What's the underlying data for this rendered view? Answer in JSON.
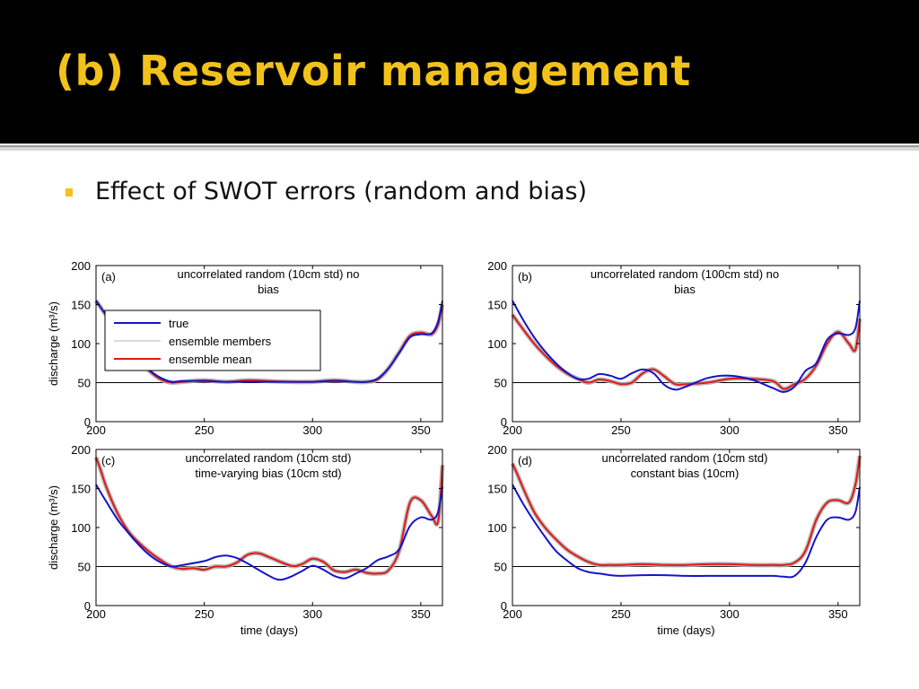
{
  "slide": {
    "title": "(b) Reservoir management",
    "bullet": "Effect of SWOT errors (random and bias)"
  },
  "colors": {
    "title": "#f2c21a",
    "true": "#1414c8",
    "mean": "#e01818",
    "members": "#b4b4b4"
  },
  "chart_data": [
    {
      "type": "line",
      "panel": "(a)",
      "title": [
        "uncorrelated random (10cm std) no",
        "bias"
      ],
      "xlabel": "",
      "ylabel": "discharge (m³/s)",
      "xlim": [
        200,
        360
      ],
      "ylim": [
        0,
        200
      ],
      "xticks": [
        200,
        250,
        300,
        350
      ],
      "yticks": [
        0,
        50,
        100,
        150,
        200
      ],
      "reference_line": 50,
      "legend": {
        "placement": "top-left",
        "entries": [
          "true",
          "ensemble members",
          "ensemble mean"
        ]
      },
      "series": [
        {
          "name": "true",
          "x": [
            200,
            205,
            210,
            215,
            220,
            225,
            230,
            235,
            240,
            250,
            260,
            270,
            280,
            290,
            300,
            310,
            320,
            325,
            330,
            335,
            340,
            345,
            350,
            355,
            358,
            360
          ],
          "y": [
            155,
            135,
            115,
            95,
            78,
            65,
            56,
            51,
            52,
            52,
            51,
            51,
            51,
            51,
            51,
            52,
            51,
            51,
            55,
            68,
            88,
            108,
            112,
            113,
            128,
            155
          ]
        },
        {
          "name": "ensemble mean",
          "x": [
            200,
            205,
            210,
            215,
            220,
            225,
            230,
            235,
            240,
            250,
            260,
            270,
            280,
            290,
            300,
            310,
            320,
            325,
            330,
            335,
            340,
            345,
            350,
            355,
            358,
            360
          ],
          "y": [
            155,
            135,
            115,
            95,
            78,
            64,
            54,
            50,
            51,
            53,
            51,
            53,
            52,
            51,
            51,
            53,
            51,
            51,
            54,
            68,
            89,
            110,
            114,
            112,
            125,
            150
          ]
        }
      ]
    },
    {
      "type": "line",
      "panel": "(b)",
      "title": [
        "uncorrelated random (100cm std) no",
        "bias"
      ],
      "xlabel": "",
      "ylabel": "",
      "xlim": [
        200,
        360
      ],
      "ylim": [
        0,
        200
      ],
      "xticks": [
        200,
        250,
        300,
        350
      ],
      "yticks": [
        0,
        50,
        100,
        150,
        200
      ],
      "reference_line": 50,
      "legend": null,
      "series": [
        {
          "name": "true",
          "x": [
            200,
            205,
            210,
            215,
            220,
            225,
            230,
            235,
            240,
            245,
            250,
            255,
            260,
            265,
            270,
            275,
            280,
            290,
            300,
            310,
            320,
            325,
            330,
            335,
            340,
            345,
            350,
            355,
            358,
            360
          ],
          "y": [
            155,
            130,
            108,
            90,
            75,
            63,
            55,
            55,
            61,
            59,
            55,
            62,
            67,
            62,
            47,
            41,
            45,
            56,
            59,
            54,
            43,
            38,
            45,
            65,
            75,
            105,
            113,
            111,
            120,
            155
          ]
        },
        {
          "name": "ensemble mean",
          "x": [
            200,
            205,
            210,
            215,
            220,
            225,
            230,
            235,
            240,
            245,
            250,
            255,
            260,
            265,
            270,
            275,
            280,
            290,
            300,
            310,
            320,
            325,
            330,
            335,
            340,
            345,
            350,
            355,
            358,
            360
          ],
          "y": [
            137,
            118,
            100,
            85,
            72,
            62,
            55,
            50,
            54,
            52,
            48,
            50,
            62,
            67,
            58,
            48,
            48,
            50,
            55,
            55,
            52,
            42,
            48,
            55,
            72,
            100,
            115,
            100,
            92,
            132
          ]
        }
      ]
    },
    {
      "type": "line",
      "panel": "(c)",
      "title": [
        "uncorrelated random (10cm std)",
        "time-varying bias (10cm std)"
      ],
      "xlabel": "time (days)",
      "ylabel": "discharge (m³/s)",
      "xlim": [
        200,
        360
      ],
      "ylim": [
        0,
        200
      ],
      "xticks": [
        200,
        250,
        300,
        350
      ],
      "yticks": [
        0,
        50,
        100,
        150,
        200
      ],
      "reference_line": 50,
      "legend": null,
      "series": [
        {
          "name": "true",
          "x": [
            200,
            205,
            210,
            215,
            220,
            225,
            230,
            235,
            240,
            250,
            255,
            260,
            265,
            270,
            280,
            285,
            290,
            295,
            300,
            305,
            310,
            315,
            320,
            325,
            330,
            335,
            340,
            345,
            350,
            355,
            358,
            360
          ],
          "y": [
            155,
            132,
            110,
            93,
            77,
            64,
            55,
            50,
            52,
            57,
            62,
            64,
            61,
            54,
            38,
            33,
            37,
            44,
            51,
            46,
            38,
            35,
            41,
            48,
            58,
            63,
            72,
            102,
            113,
            110,
            120,
            152
          ]
        },
        {
          "name": "ensemble mean",
          "x": [
            200,
            202,
            205,
            210,
            215,
            220,
            225,
            230,
            235,
            240,
            245,
            250,
            255,
            260,
            265,
            270,
            275,
            280,
            290,
            295,
            300,
            305,
            310,
            315,
            320,
            325,
            330,
            335,
            340,
            345,
            350,
            355,
            358,
            360
          ],
          "y": [
            190,
            175,
            150,
            118,
            95,
            80,
            68,
            58,
            50,
            47,
            48,
            46,
            50,
            50,
            55,
            65,
            67,
            62,
            51,
            53,
            60,
            56,
            45,
            43,
            46,
            42,
            41,
            45,
            70,
            132,
            135,
            115,
            108,
            180
          ]
        }
      ]
    },
    {
      "type": "line",
      "panel": "(d)",
      "title": [
        "uncorrelated random (10cm std)",
        "constant bias (10cm)"
      ],
      "xlabel": "time (days)",
      "ylabel": "",
      "xlim": [
        200,
        360
      ],
      "ylim": [
        0,
        200
      ],
      "xticks": [
        200,
        250,
        300,
        350
      ],
      "yticks": [
        0,
        50,
        100,
        150,
        200
      ],
      "reference_line": 50,
      "legend": null,
      "series": [
        {
          "name": "true",
          "x": [
            200,
            205,
            210,
            215,
            220,
            225,
            230,
            235,
            240,
            245,
            250,
            260,
            270,
            280,
            290,
            300,
            310,
            320,
            325,
            330,
            335,
            340,
            345,
            350,
            355,
            358,
            360
          ],
          "y": [
            155,
            130,
            108,
            88,
            70,
            58,
            48,
            43,
            41,
            39,
            38,
            39,
            39,
            38,
            38,
            38,
            38,
            38,
            37,
            38,
            55,
            88,
            110,
            113,
            110,
            120,
            152
          ]
        },
        {
          "name": "ensemble mean",
          "x": [
            200,
            202,
            205,
            210,
            215,
            220,
            225,
            230,
            235,
            240,
            245,
            250,
            260,
            270,
            280,
            290,
            300,
            310,
            320,
            325,
            330,
            335,
            340,
            345,
            350,
            355,
            358,
            360
          ],
          "y": [
            182,
            170,
            150,
            120,
            100,
            85,
            72,
            63,
            56,
            52,
            52,
            52,
            53,
            52,
            52,
            53,
            53,
            52,
            52,
            52,
            55,
            70,
            110,
            132,
            135,
            132,
            155,
            192
          ]
        }
      ]
    }
  ]
}
